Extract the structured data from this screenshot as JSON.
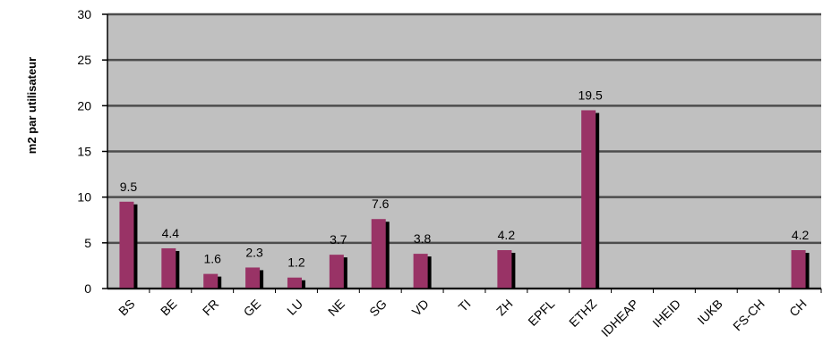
{
  "chart_data": {
    "type": "bar",
    "title": "",
    "xlabel": "",
    "ylabel": "m2 par utilisateur",
    "ylim": [
      0,
      30
    ],
    "yticks": [
      0,
      5,
      10,
      15,
      20,
      25,
      30
    ],
    "grid": true,
    "categories": [
      "BS",
      "BE",
      "FR",
      "GE",
      "LU",
      "NE",
      "SG",
      "VD",
      "TI",
      "ZH",
      "EPFL",
      "ETHZ",
      "IDHEAP",
      "IHEID",
      "IUKB",
      "FS-CH",
      "CH"
    ],
    "values": [
      9.5,
      4.4,
      1.6,
      2.3,
      1.2,
      3.7,
      7.6,
      3.8,
      null,
      4.2,
      null,
      19.5,
      null,
      null,
      null,
      null,
      4.2
    ],
    "data_labels": [
      "9.5",
      "4.4",
      "1.6",
      "2.3",
      "1.2",
      "3.7",
      "7.6",
      "3.8",
      "",
      "4.2",
      "",
      "19.5",
      "",
      "",
      "",
      "",
      "4.2"
    ],
    "colors": {
      "bar": "#993366",
      "bar_shadow": "#000000",
      "plot_background": "#c0c0c0",
      "gridline": "#4d4d4d"
    }
  }
}
